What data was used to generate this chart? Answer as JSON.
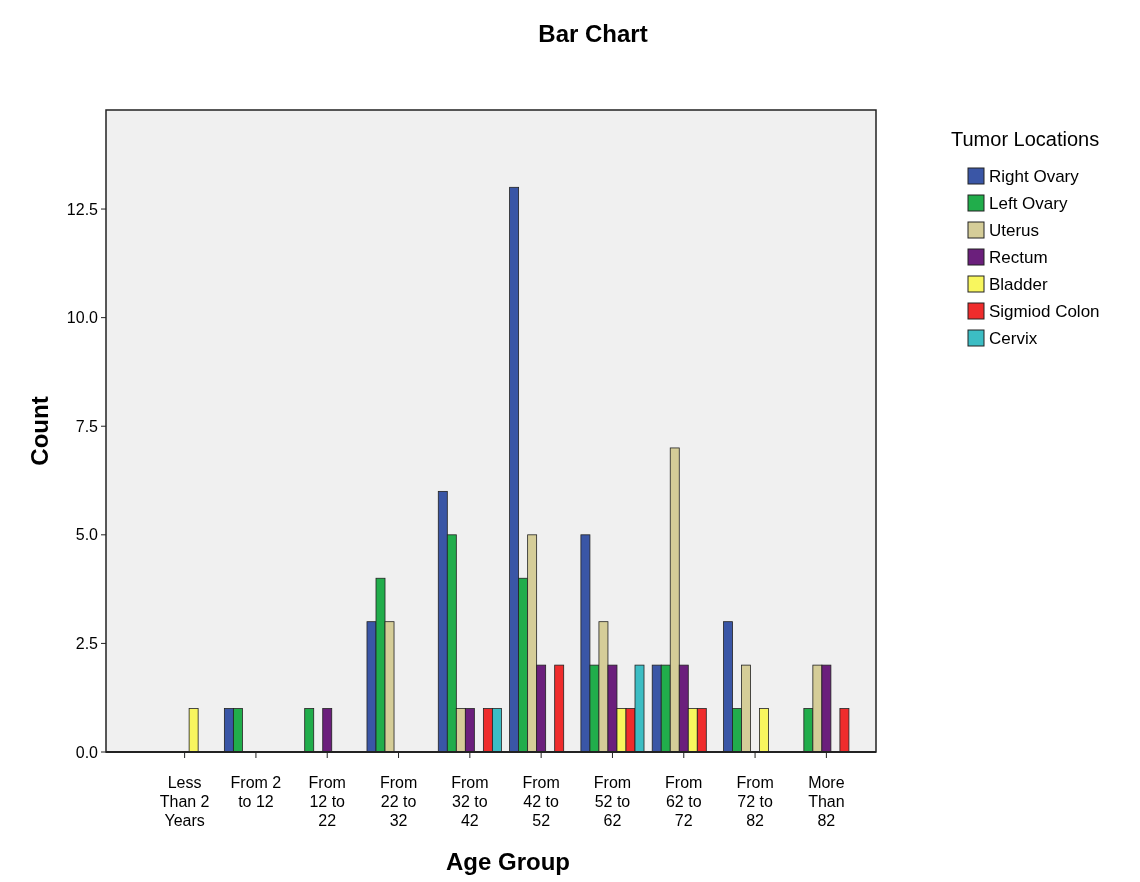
{
  "chart_data": {
    "type": "bar",
    "title": "Bar Chart",
    "xlabel": "Age Group",
    "ylabel": "Count",
    "legend_title": "Tumor Locations",
    "legend": "right",
    "grid": false,
    "categories": [
      "Less Than 2 Years",
      "From 2 to 12",
      "From 12 to 22",
      "From 22 to 32",
      "From 32 to 42",
      "From 42 to 52",
      "From 52 to 62",
      "From 62 to 72",
      "From 72 to 82",
      "More Than 82"
    ],
    "ylim": [
      0,
      14.78
    ],
    "yticks": [
      {
        "value": 0,
        "label": "0.0"
      },
      {
        "value": 2.5,
        "label": "2.5"
      },
      {
        "value": 5,
        "label": "5.0"
      },
      {
        "value": 7.5,
        "label": "7.5"
      },
      {
        "value": 10,
        "label": "10.0"
      },
      {
        "value": 12.5,
        "label": "12.5"
      }
    ],
    "series": [
      {
        "name": "Right Ovary",
        "color": "#3a56a6",
        "values": [
          0,
          1,
          0,
          3,
          6,
          13,
          5,
          2,
          3,
          0
        ]
      },
      {
        "name": "Left Ovary",
        "color": "#21ad4b",
        "values": [
          0,
          1,
          1,
          4,
          5,
          4,
          2,
          2,
          1,
          1
        ]
      },
      {
        "name": "Uterus",
        "color": "#d5cd98",
        "values": [
          0,
          0,
          0,
          3,
          1,
          5,
          3,
          7,
          2,
          2
        ]
      },
      {
        "name": "Rectum",
        "color": "#6b1f7c",
        "values": [
          0,
          0,
          1,
          0,
          1,
          2,
          2,
          2,
          0,
          2
        ]
      },
      {
        "name": "Bladder",
        "color": "#f8f65e",
        "values": [
          1,
          0,
          0,
          0,
          0,
          0,
          1,
          1,
          1,
          0
        ]
      },
      {
        "name": "Sigmiod Colon",
        "color": "#ef2c2c",
        "values": [
          0,
          0,
          0,
          0,
          1,
          2,
          1,
          1,
          0,
          1
        ]
      },
      {
        "name": "Cervix",
        "color": "#3cbdc4",
        "values": [
          0,
          0,
          0,
          0,
          1,
          0,
          2,
          0,
          0,
          0
        ]
      }
    ]
  }
}
